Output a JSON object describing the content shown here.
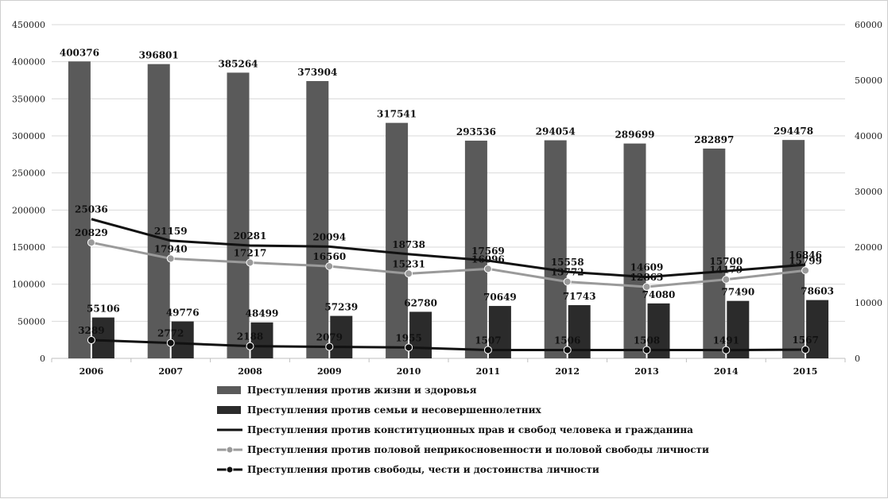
{
  "chart_data": {
    "type": "bar",
    "categories": [
      "2006",
      "2007",
      "2008",
      "2009",
      "2010",
      "2011",
      "2012",
      "2013",
      "2014",
      "2015"
    ],
    "y_left": {
      "min": 0,
      "max": 450000,
      "ticks": [
        "0",
        "50000",
        "100000",
        "150000",
        "200000",
        "250000",
        "300000",
        "350000",
        "400000",
        "450000"
      ]
    },
    "y_right": {
      "min": 0,
      "max": 60000,
      "ticks": [
        "0",
        "10000",
        "20000",
        "30000",
        "40000",
        "50000",
        "60000"
      ]
    },
    "grid": true,
    "legend_position": "bottom",
    "series": [
      {
        "name": "Преступления против жизни и здоровья",
        "kind": "bar",
        "axis": "left",
        "color": "#5a5a5a",
        "values": [
          400376,
          396801,
          385264,
          373904,
          317541,
          293536,
          294054,
          289699,
          282897,
          294478
        ],
        "labels": [
          "400376",
          "396801",
          "385264",
          "373904",
          "317541",
          "293536",
          "294054",
          "289699",
          "282897",
          "294478"
        ]
      },
      {
        "name": "Преступления против семьи и несовершеннолетних",
        "kind": "bar",
        "axis": "left",
        "color": "#2b2b2b",
        "values": [
          55106,
          49776,
          48499,
          57239,
          62780,
          70649,
          71743,
          74080,
          77490,
          78603
        ],
        "labels": [
          "55106",
          "49776",
          "48499",
          "57239",
          "62780",
          "70649",
          "71743",
          "74080",
          "77490",
          "78603"
        ]
      },
      {
        "name": "Преступления против конституционных прав и свобод человека и гражданина",
        "kind": "line",
        "axis": "right",
        "color": "#111111",
        "marker": false,
        "values": [
          25036,
          21159,
          20281,
          20094,
          18738,
          17569,
          15558,
          14609,
          15700,
          16846
        ],
        "labels": [
          "25036",
          "21159",
          "20281",
          "20094",
          "18738",
          "17569",
          "15558",
          "14609",
          "15700",
          "16846"
        ]
      },
      {
        "name": "Преступления против половой неприкосновенности и половой свободы  личности",
        "kind": "line",
        "axis": "right",
        "color": "#9a9a9a",
        "marker": true,
        "values": [
          20829,
          17940,
          17217,
          16560,
          15231,
          16096,
          13772,
          12863,
          14179,
          15799
        ],
        "labels": [
          "20829",
          "17940",
          "17217",
          "16560",
          "15231",
          "16096",
          "13772",
          "12863",
          "14179",
          "15799"
        ]
      },
      {
        "name": "Преступления против свободы, чести и достоинства личности",
        "kind": "line",
        "axis": "right",
        "color": "#111111",
        "marker": true,
        "values": [
          3289,
          2772,
          2188,
          2079,
          1955,
          1507,
          1506,
          1508,
          1491,
          1567
        ],
        "labels": [
          "3289",
          "2772",
          "2188",
          "2079",
          "1955",
          "1507",
          "1506",
          "1508",
          "1491",
          "1567"
        ]
      }
    ]
  }
}
